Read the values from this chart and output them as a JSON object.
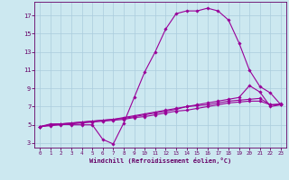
{
  "xlabel": "Windchill (Refroidissement éolien,°C)",
  "background_color": "#cce8f0",
  "grid_color": "#aaccdd",
  "line_color": "#990099",
  "xlim": [
    -0.5,
    23.5
  ],
  "ylim": [
    2.5,
    18.5
  ],
  "xticks": [
    0,
    1,
    2,
    3,
    4,
    5,
    6,
    7,
    8,
    9,
    10,
    11,
    12,
    13,
    14,
    15,
    16,
    17,
    18,
    19,
    20,
    21,
    22,
    23
  ],
  "yticks": [
    3,
    5,
    7,
    9,
    11,
    13,
    15,
    17
  ],
  "series1_x": [
    0,
    1,
    2,
    3,
    4,
    5,
    6,
    7,
    8,
    9,
    10,
    11,
    12,
    13,
    14,
    15,
    16,
    17,
    18,
    19,
    20,
    21,
    22,
    23
  ],
  "series1_y": [
    4.8,
    5.1,
    5.1,
    5.0,
    5.0,
    5.0,
    3.4,
    2.9,
    5.2,
    8.0,
    10.8,
    13.0,
    15.5,
    17.2,
    17.5,
    17.5,
    17.8,
    17.5,
    16.5,
    14.0,
    11.0,
    9.2,
    8.5,
    7.2
  ],
  "series2_x": [
    0,
    1,
    2,
    3,
    4,
    5,
    6,
    7,
    8,
    9,
    10,
    11,
    12,
    13,
    14,
    15,
    16,
    17,
    18,
    19,
    20,
    21,
    22,
    23
  ],
  "series2_y": [
    4.8,
    5.0,
    5.1,
    5.2,
    5.3,
    5.4,
    5.5,
    5.6,
    5.8,
    6.0,
    6.2,
    6.4,
    6.6,
    6.8,
    7.0,
    7.2,
    7.4,
    7.6,
    7.8,
    8.0,
    9.3,
    8.6,
    7.0,
    7.2
  ],
  "series3_x": [
    0,
    1,
    2,
    3,
    4,
    5,
    6,
    7,
    8,
    9,
    10,
    11,
    12,
    13,
    14,
    15,
    16,
    17,
    18,
    19,
    20,
    21,
    22,
    23
  ],
  "series3_y": [
    4.8,
    5.0,
    5.1,
    5.2,
    5.3,
    5.4,
    5.5,
    5.6,
    5.7,
    5.9,
    6.1,
    6.3,
    6.5,
    6.7,
    7.0,
    7.1,
    7.2,
    7.4,
    7.6,
    7.7,
    7.8,
    7.9,
    7.2,
    7.3
  ],
  "series4_x": [
    0,
    1,
    2,
    3,
    4,
    5,
    6,
    7,
    8,
    9,
    10,
    11,
    12,
    13,
    14,
    15,
    16,
    17,
    18,
    19,
    20,
    21,
    22,
    23
  ],
  "series4_y": [
    4.8,
    4.9,
    5.0,
    5.1,
    5.2,
    5.3,
    5.4,
    5.5,
    5.6,
    5.8,
    5.9,
    6.1,
    6.3,
    6.5,
    6.6,
    6.8,
    7.0,
    7.2,
    7.4,
    7.5,
    7.6,
    7.6,
    7.2,
    7.2
  ]
}
